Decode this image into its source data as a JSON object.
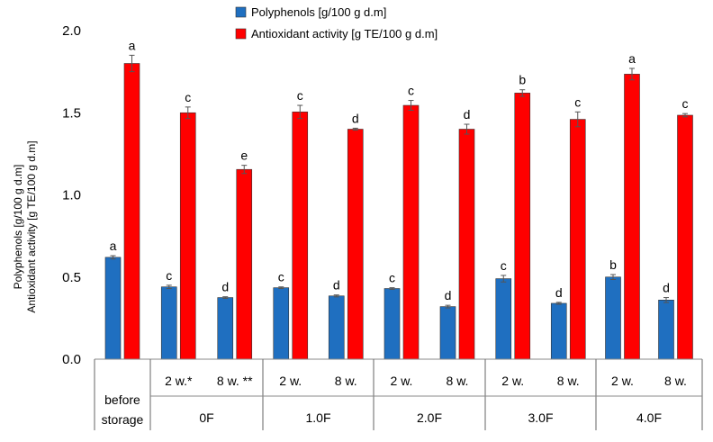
{
  "chart_data": {
    "type": "bar",
    "title": "",
    "ylim": [
      0,
      2.0
    ],
    "yticks": [
      "0.0",
      "0.5",
      "1.0",
      "1.5",
      "2.0"
    ],
    "ylabel_line1": "Polyphenols [g/100 g d.m]",
    "ylabel_line2": "Antioxidant activity [g TE/100 g d.m]",
    "legend_position": "top",
    "groups": [
      {
        "label": "before storage",
        "sublabels": []
      },
      {
        "label": "0F",
        "sublabels": [
          "2 w.*",
          "8 w. **"
        ]
      },
      {
        "label": "1.0F",
        "sublabels": [
          "2 w.",
          "8 w."
        ]
      },
      {
        "label": "2.0F",
        "sublabels": [
          "2 w.",
          "8 w."
        ]
      },
      {
        "label": "3.0F",
        "sublabels": [
          "2 w.",
          "8 w."
        ]
      },
      {
        "label": "4.0F",
        "sublabels": [
          "2 w.",
          "8 w."
        ]
      }
    ],
    "series": [
      {
        "name": "Polyphenols [g/100 g d.m]",
        "color": "#1f6fc0",
        "values": [
          0.62,
          0.44,
          0.375,
          0.435,
          0.385,
          0.43,
          0.32,
          0.49,
          0.34,
          0.5,
          0.36
        ],
        "errors": [
          0.01,
          0.01,
          0.005,
          0.005,
          0.006,
          0.005,
          0.008,
          0.02,
          0.006,
          0.015,
          0.015
        ],
        "letters": [
          "a",
          "c",
          "d",
          "c",
          "d",
          "c",
          "d",
          "c",
          "d",
          "b",
          "d"
        ]
      },
      {
        "name": "Antioxidant activity [g TE/100 g d.m]",
        "color": "#ff0000",
        "values": [
          1.8,
          1.5,
          1.155,
          1.505,
          1.4,
          1.545,
          1.4,
          1.62,
          1.46,
          1.735,
          1.485
        ],
        "errors": [
          0.05,
          0.035,
          0.025,
          0.04,
          0.006,
          0.03,
          0.03,
          0.02,
          0.045,
          0.035,
          0.01
        ],
        "letters": [
          "a",
          "c",
          "e",
          "c",
          "d",
          "c",
          "d",
          "b",
          "c",
          "a",
          "c"
        ]
      }
    ]
  }
}
